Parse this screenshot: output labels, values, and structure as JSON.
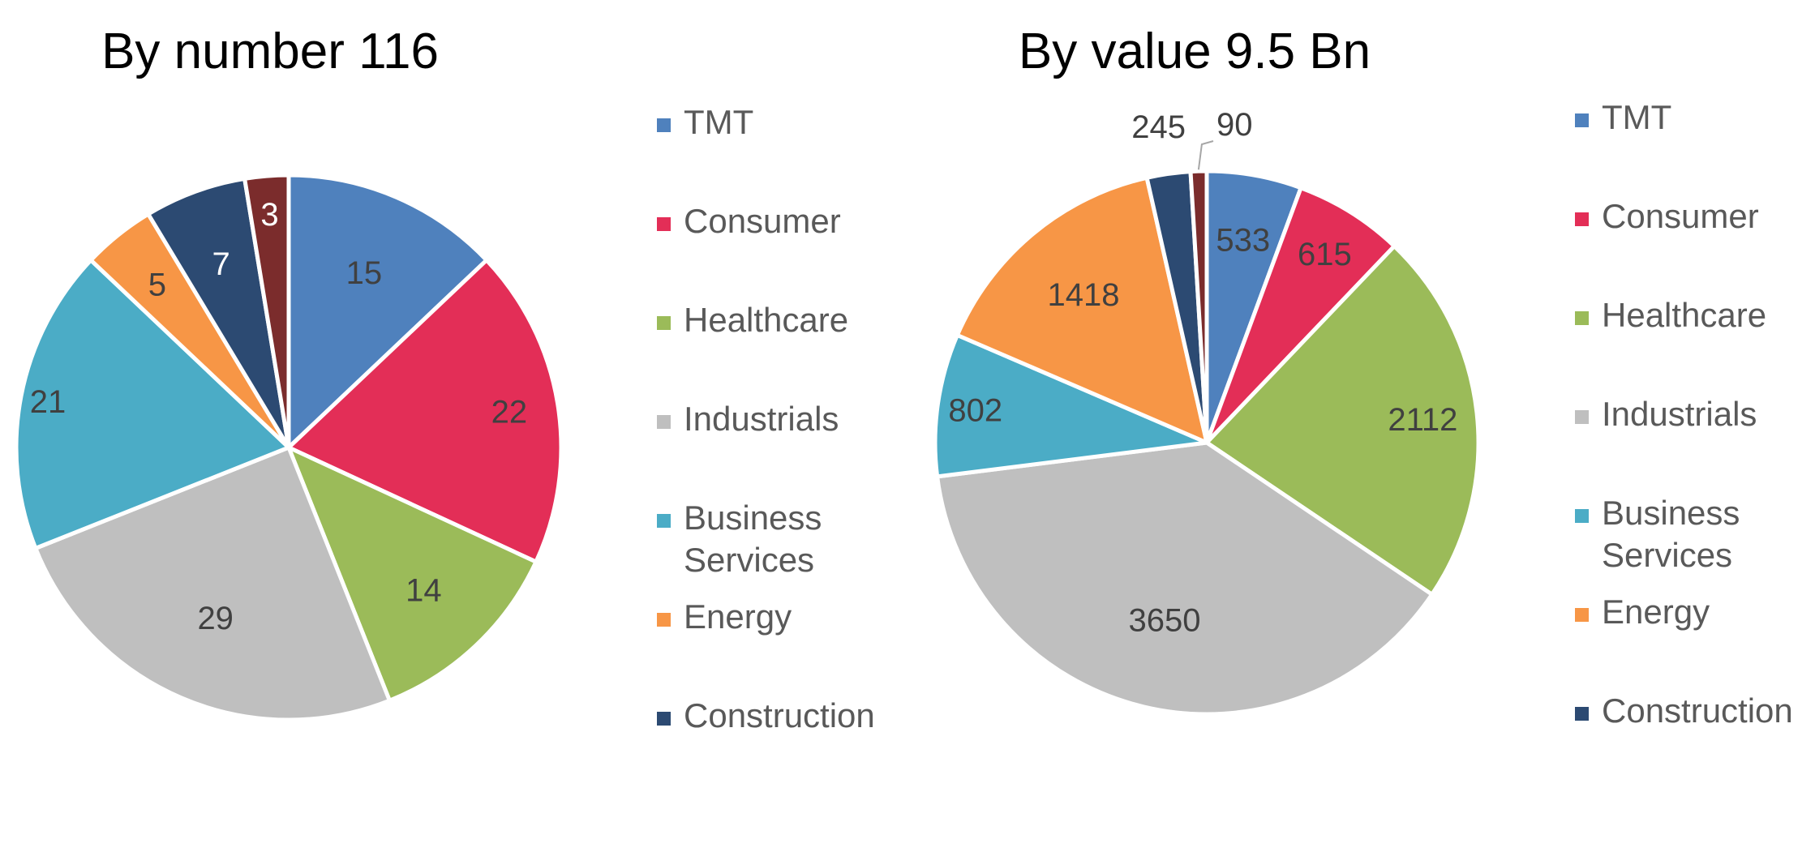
{
  "chart_data": [
    {
      "type": "pie",
      "title": "By number 116",
      "categories": [
        "TMT",
        "Consumer",
        "Healthcare",
        "Industrials",
        "Business Services",
        "Energy",
        "Construction",
        ""
      ],
      "values": [
        15,
        22,
        14,
        29,
        21,
        5,
        7,
        3
      ],
      "colors": [
        "#4f81bd",
        "#e32e57",
        "#9bbb59",
        "#bfbfbf",
        "#4bacc6",
        "#f79646",
        "#2c4a72",
        "#7b2c2c"
      ],
      "label_colors": [
        "#404040",
        "#404040",
        "#404040",
        "#404040",
        "#404040",
        "#404040",
        "#ffffff",
        "#ffffff"
      ],
      "start_angle": "12 o'clock",
      "direction": "clockwise",
      "legend": {
        "position": "right",
        "items": [
          {
            "name": "TMT",
            "lines": [
              "TMT"
            ],
            "color": "#4f81bd"
          },
          {
            "name": "Consumer",
            "lines": [
              "Consumer"
            ],
            "color": "#e32e57"
          },
          {
            "name": "Healthcare",
            "lines": [
              "Healthcare"
            ],
            "color": "#9bbb59"
          },
          {
            "name": "Industrials",
            "lines": [
              "Industrials"
            ],
            "color": "#bfbfbf"
          },
          {
            "name": "Business Services",
            "lines": [
              "Business",
              "Services"
            ],
            "color": "#4bacc6"
          },
          {
            "name": "Energy",
            "lines": [
              "Energy"
            ],
            "color": "#f79646"
          },
          {
            "name": "Construction",
            "lines": [
              "Construction"
            ],
            "color": "#2c4a72"
          }
        ]
      }
    },
    {
      "type": "pie",
      "title": "By value 9.5 Bn",
      "categories": [
        "TMT",
        "Consumer",
        "Healthcare",
        "Industrials",
        "Business Services",
        "Energy",
        "Construction",
        ""
      ],
      "values": [
        533,
        615,
        2112,
        3650,
        802,
        1418,
        245,
        90
      ],
      "colors": [
        "#4f81bd",
        "#e32e57",
        "#9bbb59",
        "#bfbfbf",
        "#4bacc6",
        "#f79646",
        "#2c4a72",
        "#7b2c2c"
      ],
      "label_colors": [
        "#404040",
        "#404040",
        "#404040",
        "#404040",
        "#404040",
        "#404040",
        "#404040",
        "#404040"
      ],
      "start_angle": "12 o'clock",
      "direction": "clockwise",
      "legend": {
        "position": "right",
        "items": [
          {
            "name": "TMT",
            "lines": [
              "TMT"
            ],
            "color": "#4f81bd"
          },
          {
            "name": "Consumer",
            "lines": [
              "Consumer"
            ],
            "color": "#e32e57"
          },
          {
            "name": "Healthcare",
            "lines": [
              "Healthcare"
            ],
            "color": "#9bbb59"
          },
          {
            "name": "Industrials",
            "lines": [
              "Industrials"
            ],
            "color": "#bfbfbf"
          },
          {
            "name": "Business Services",
            "lines": [
              "Business",
              "Services"
            ],
            "color": "#4bacc6"
          },
          {
            "name": "Energy",
            "lines": [
              "Energy"
            ],
            "color": "#f79646"
          },
          {
            "name": "Construction",
            "lines": [
              "Construction"
            ],
            "color": "#2c4a72"
          }
        ]
      }
    }
  ]
}
